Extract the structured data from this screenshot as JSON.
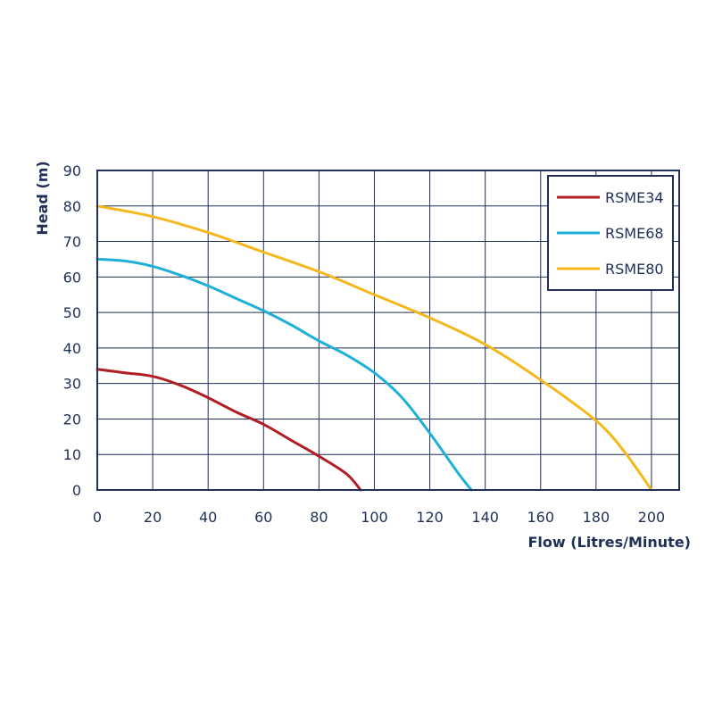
{
  "chart_data": {
    "type": "line",
    "xlabel": "Flow (Litres/Minute)",
    "ylabel": "Head (m)",
    "xlim": [
      0,
      210
    ],
    "ylim": [
      0,
      90
    ],
    "xticks": [
      0,
      20,
      40,
      60,
      80,
      100,
      120,
      140,
      160,
      180,
      200
    ],
    "yticks": [
      0,
      10,
      20,
      30,
      40,
      50,
      60,
      70,
      80,
      90
    ],
    "grid": true,
    "legend_position": "top-right",
    "series": [
      {
        "name": "RSME34",
        "color": "#b01e23",
        "x": [
          0,
          10,
          20,
          30,
          40,
          50,
          60,
          70,
          80,
          90,
          95
        ],
        "y": [
          34,
          33,
          32,
          29.5,
          26,
          22,
          18.5,
          14,
          9.5,
          4.5,
          0
        ]
      },
      {
        "name": "RSME68",
        "color": "#1eb0d7",
        "x": [
          0,
          10,
          20,
          30,
          40,
          50,
          60,
          70,
          80,
          90,
          100,
          110,
          120,
          130,
          135
        ],
        "y": [
          65,
          64.5,
          63,
          60.5,
          57.5,
          54,
          50.5,
          46.5,
          42,
          38,
          33,
          26,
          16,
          5,
          0
        ]
      },
      {
        "name": "RSME80",
        "color": "#f4b81c",
        "x": [
          0,
          20,
          40,
          60,
          80,
          100,
          120,
          140,
          160,
          180,
          190,
          200
        ],
        "y": [
          80,
          77,
          72.5,
          67,
          61.5,
          55,
          48.5,
          41,
          31,
          19.5,
          11,
          0
        ]
      }
    ]
  }
}
